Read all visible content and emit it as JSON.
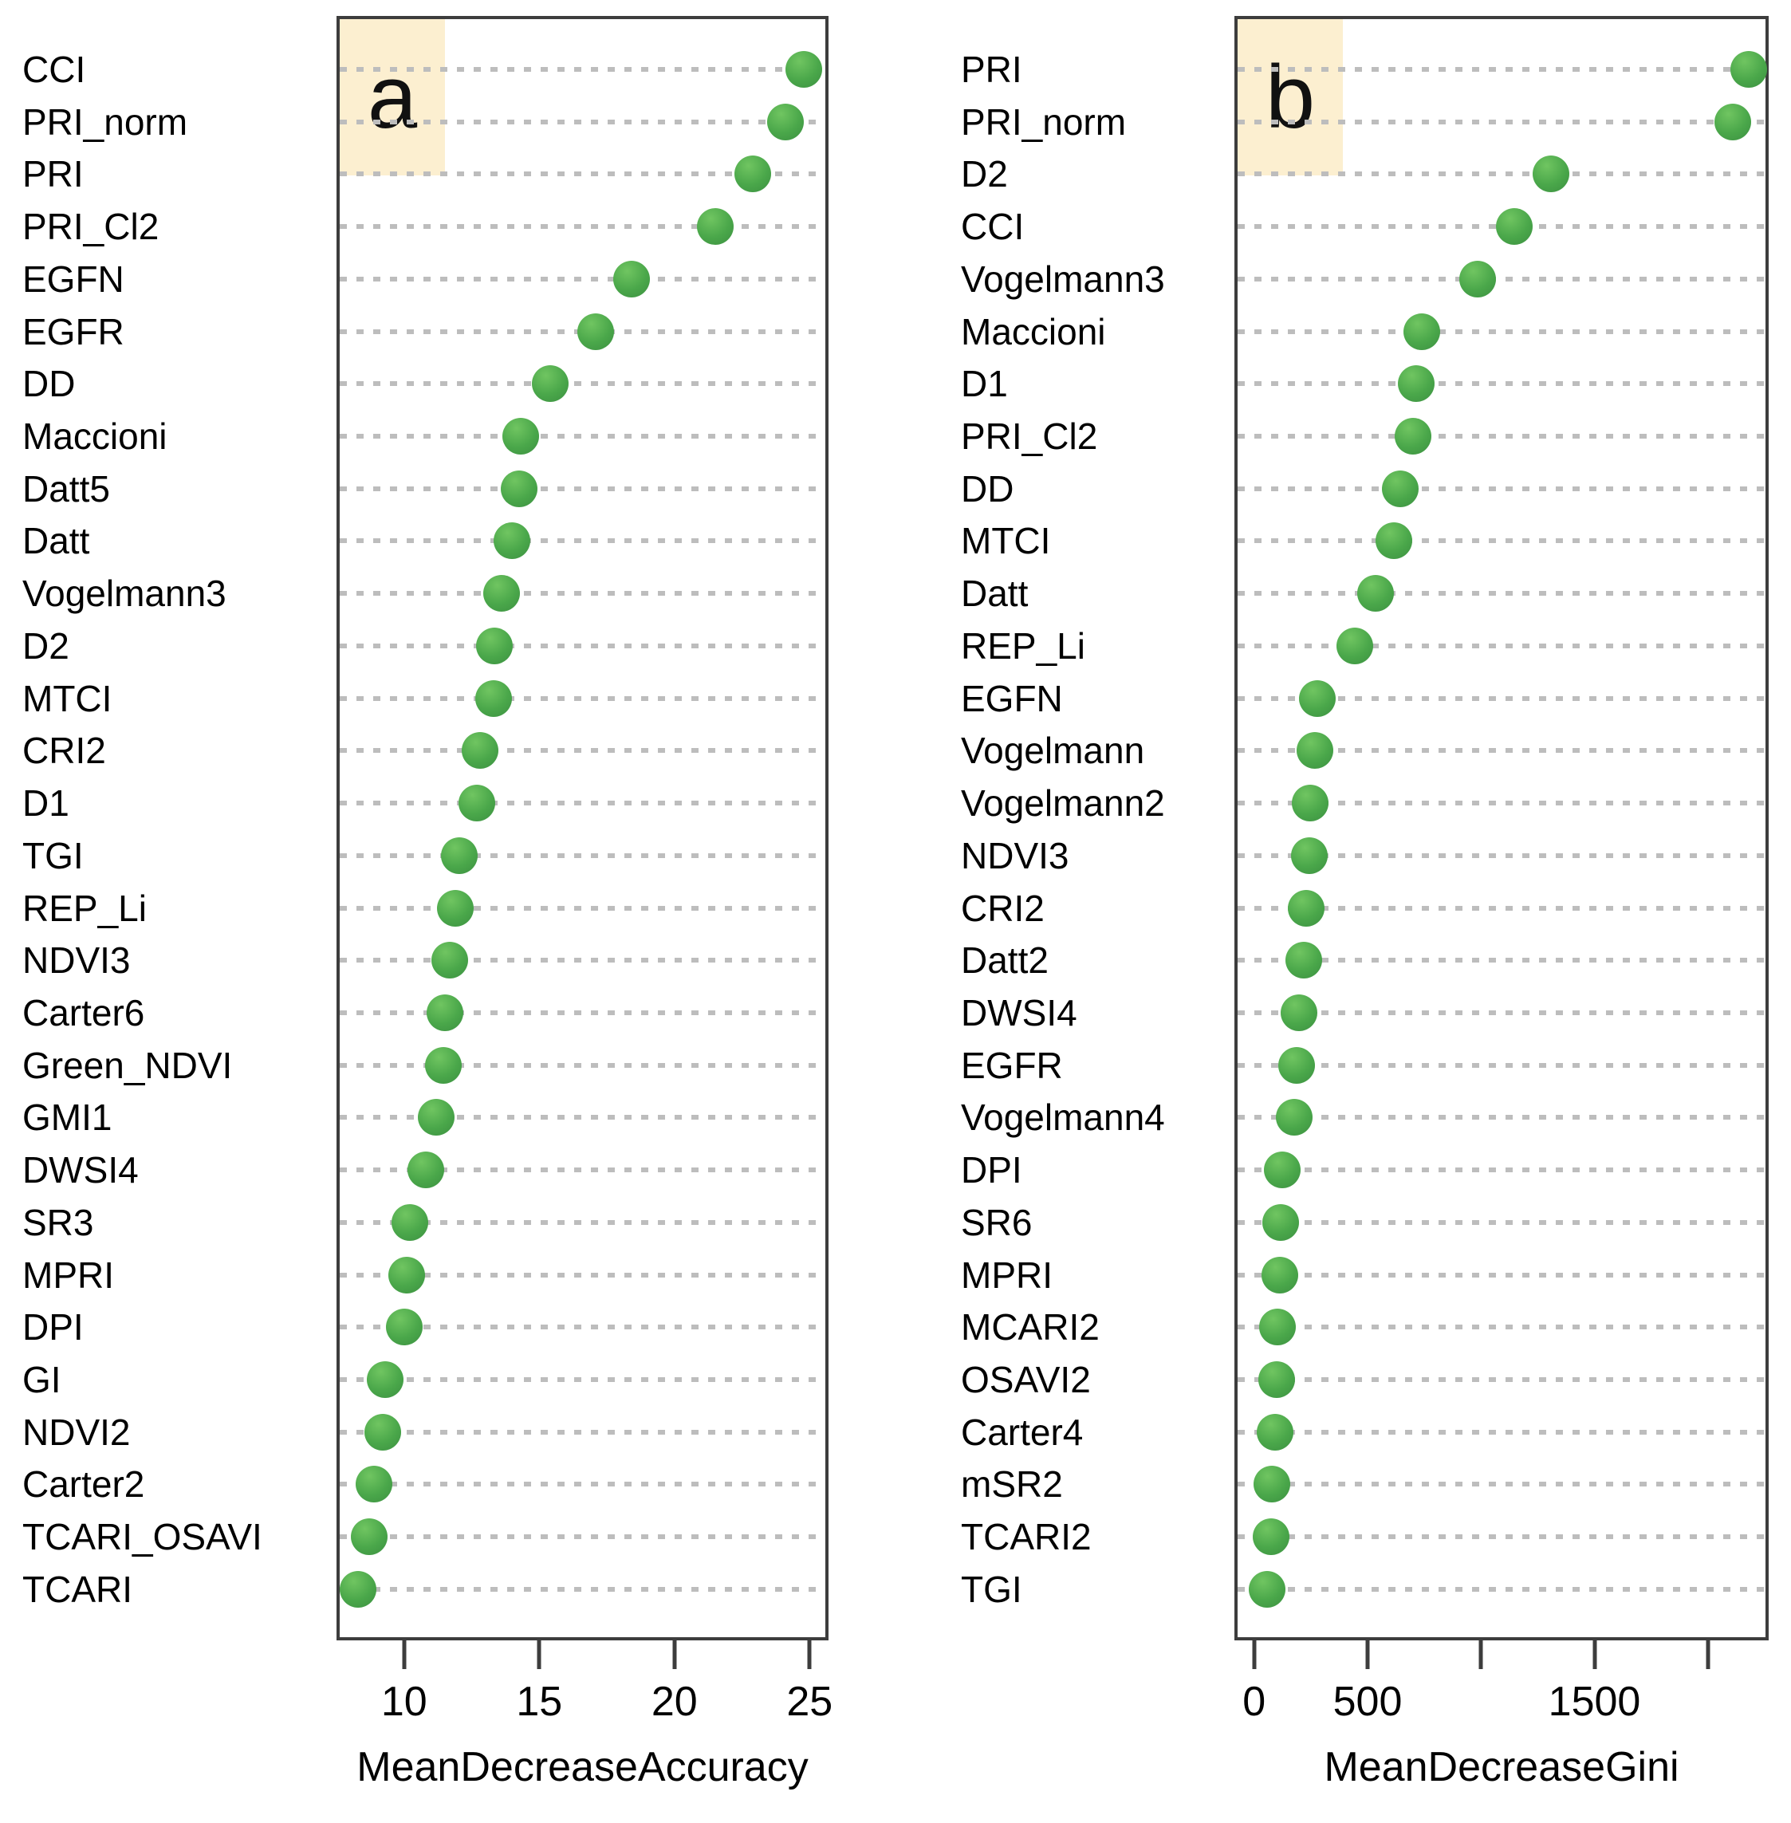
{
  "figure": {
    "background": "#ffffff",
    "dot_color": "#4aa74a",
    "grid_color": "#bdbdbd",
    "badge_color": "#fcefd0",
    "border_color": "#3d3d3d"
  },
  "chart_data": [
    {
      "type": "scatter",
      "panel_label": "a",
      "xlabel": "MeanDecreaseAccuracy",
      "grid": "dotted-horizontal",
      "legend": "none",
      "xlim": [
        7.5,
        25.7
      ],
      "xticks": [
        {
          "value": 10,
          "label": "10"
        },
        {
          "value": 15,
          "label": "15"
        },
        {
          "value": 20,
          "label": "20"
        },
        {
          "value": 25,
          "label": "25"
        }
      ],
      "categories": [
        "CCI",
        "PRI_norm",
        "PRI",
        "PRI_Cl2",
        "EGFN",
        "EGFR",
        "DD",
        "Maccioni",
        "Datt5",
        "Datt",
        "Vogelmann3",
        "D2",
        "MTCI",
        "CRI2",
        "D1",
        "TGI",
        "REP_Li",
        "NDVI3",
        "Carter6",
        "Green_NDVI",
        "GMI1",
        "DWSI4",
        "SR3",
        "MPRI",
        "DPI",
        "GI",
        "NDVI2",
        "Carter2",
        "TCARI_OSAVI",
        "TCARI"
      ],
      "values": [
        24.8,
        24.1,
        22.9,
        21.5,
        18.4,
        17.1,
        15.4,
        14.3,
        14.25,
        14.0,
        13.6,
        13.35,
        13.3,
        12.8,
        12.7,
        12.05,
        11.9,
        11.7,
        11.5,
        11.45,
        11.2,
        10.8,
        10.2,
        10.1,
        10.0,
        9.3,
        9.2,
        8.9,
        8.7,
        8.3
      ]
    },
    {
      "type": "scatter",
      "panel_label": "b",
      "xlabel": "MeanDecreaseGini",
      "grid": "dotted-horizontal",
      "legend": "none",
      "xlim": [
        -87,
        2268
      ],
      "xticks": [
        {
          "value": 0,
          "label": "0"
        },
        {
          "value": 500,
          "label": "500"
        },
        {
          "value": 1000,
          "label": ""
        },
        {
          "value": 1500,
          "label": "1500"
        },
        {
          "value": 2000,
          "label": ""
        }
      ],
      "categories": [
        "PRI",
        "PRI_norm",
        "D2",
        "CCI",
        "Vogelmann3",
        "Maccioni",
        "D1",
        "PRI_Cl2",
        "DD",
        "MTCI",
        "Datt",
        "REP_Li",
        "EGFN",
        "Vogelmann",
        "Vogelmann2",
        "NDVI3",
        "CRI2",
        "Datt2",
        "DWSI4",
        "EGFR",
        "Vogelmann4",
        "DPI",
        "SR6",
        "MPRI",
        "MCARI2",
        "OSAVI2",
        "Carter4",
        "mSR2",
        "TCARI2",
        "TGI"
      ],
      "values": [
        2180,
        2110,
        1310,
        1145,
        985,
        740,
        715,
        700,
        645,
        615,
        535,
        445,
        280,
        268,
        248,
        243,
        230,
        218,
        196,
        187,
        178,
        125,
        118,
        115,
        103,
        100,
        92,
        78,
        74,
        58
      ]
    }
  ]
}
